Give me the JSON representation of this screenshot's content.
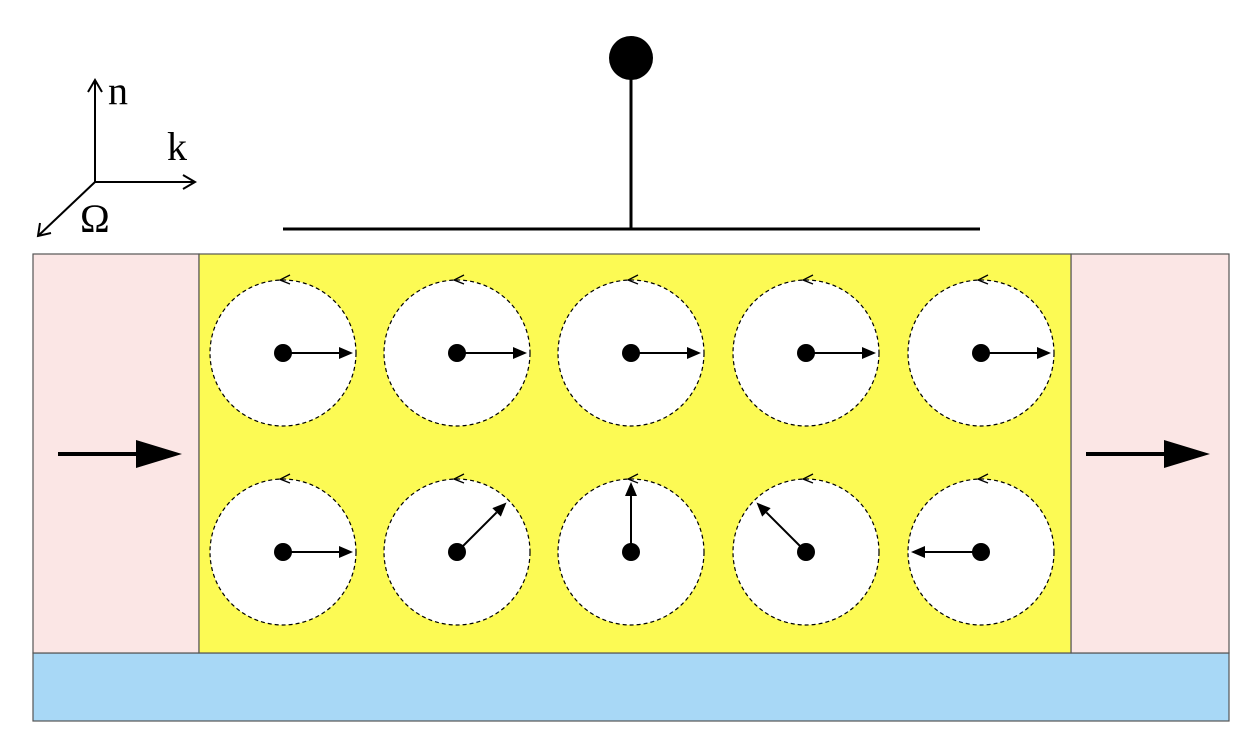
{
  "axes": {
    "labels": {
      "normal": "n",
      "wavevector": "k",
      "rotation": "Ω"
    }
  },
  "colors": {
    "lead_fill": "#fbe6e5",
    "channel_fill": "#fcfa54",
    "substrate_fill": "#a8d8f6",
    "spin_fill": "#ffffff",
    "stroke": "#000000"
  },
  "spins": {
    "top_row_angles_deg": [
      0,
      0,
      0,
      0,
      0
    ],
    "bottom_row_angles_deg": [
      0,
      45,
      90,
      135,
      180
    ]
  }
}
